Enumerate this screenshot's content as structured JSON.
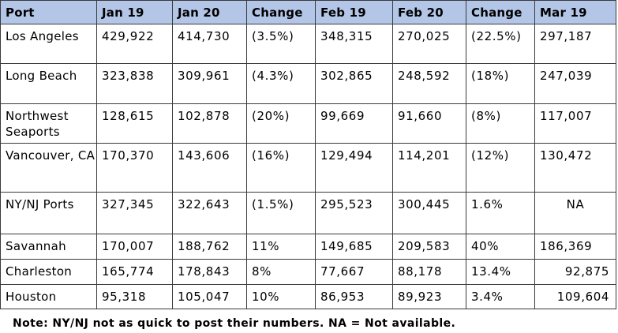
{
  "table": {
    "headers": [
      "Port",
      "Jan 19",
      "Jan 20",
      "Change",
      "Feb 19",
      "Feb 20",
      "Change",
      "Mar 19"
    ],
    "rows": [
      {
        "port": "Los Angeles",
        "jan19": "429,922",
        "jan20": "414,730",
        "change1": "(3.5%)",
        "feb19": "348,315",
        "feb20": "270,025",
        "change2": "(22.5%)",
        "mar19": "297,187"
      },
      {
        "port": "Long Beach",
        "jan19": "323,838",
        "jan20": "309,961",
        "change1": "(4.3%)",
        "feb19": "302,865",
        "feb20": "248,592",
        "change2": "(18%)",
        "mar19": "247,039"
      },
      {
        "port": "Northwest Seaports",
        "jan19": "128,615",
        "jan20": "102,878",
        "change1": "(20%)",
        "feb19": "99,669",
        "feb20": "91,660",
        "change2": "(8%)",
        "mar19": "117,007"
      },
      {
        "port": "Vancouver, CA",
        "jan19": "170,370",
        "jan20": "143,606",
        "change1": "(16%)",
        "feb19": "129,494",
        "feb20": "114,201",
        "change2": "(12%)",
        "mar19": "130,472"
      },
      {
        "port": "NY/NJ Ports",
        "jan19": "327,345",
        "jan20": "322,643",
        "change1": "(1.5%)",
        "feb19": "295,523",
        "feb20": "300,445",
        "change2": "1.6%",
        "mar19": "NA"
      },
      {
        "port": "Savannah",
        "jan19": "170,007",
        "jan20": "188,762",
        "change1": "11%",
        "feb19": "149,685",
        "feb20": "209,583",
        "change2": "40%",
        "mar19": "186,369"
      },
      {
        "port": "Charleston",
        "jan19": "165,774",
        "jan20": "178,843",
        "change1": "8%",
        "feb19": "77,667",
        "feb20": "88,178",
        "change2": "13.4%",
        "mar19": "92,875"
      },
      {
        "port": "Houston",
        "jan19": "95,318",
        "jan20": "105,047",
        "change1": "10%",
        "feb19": "86,953",
        "feb20": "89,923",
        "change2": "3.4%",
        "mar19": "109,604"
      }
    ]
  },
  "note": "Note: NY/NJ not as quick to post their numbers. NA = Not available."
}
